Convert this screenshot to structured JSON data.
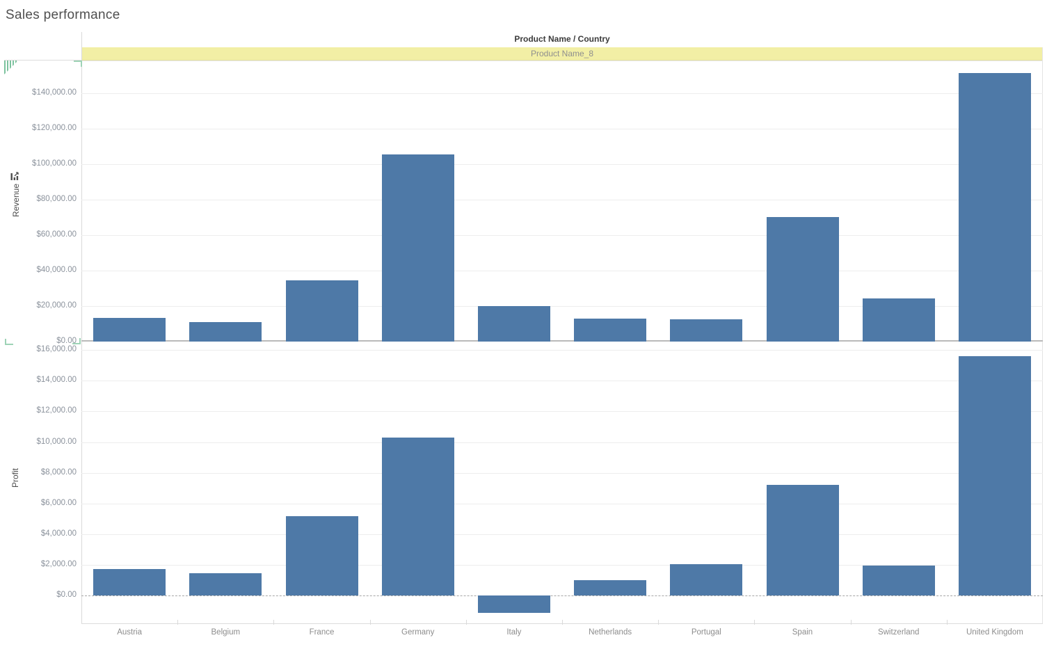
{
  "title": "Sales performance",
  "header": {
    "field_label": "Product Name / Country",
    "band_label": "Product Name_8"
  },
  "icons": {
    "revenue_axis_icon": "sort-bars-icon",
    "top_left_indicator": "hatched-triangle-drop-indicator",
    "corner_marks": "green-corner-bracket"
  },
  "colors": {
    "bar": "#4e79a7",
    "band_bg": "#f2efa5",
    "band_text": "#8f8f8f",
    "tick_text": "#8b929c",
    "green_accent": "#8fcbaf",
    "gridline": "#ededed"
  },
  "chart_data": [
    {
      "type": "bar",
      "pane": "top",
      "ylabel": "Revenue",
      "categories": [
        "Austria",
        "Belgium",
        "France",
        "Germany",
        "Italy",
        "Netherlands",
        "Portugal",
        "Spain",
        "Switzerland",
        "United Kingdom"
      ],
      "values": [
        13500,
        11000,
        34500,
        105300,
        19900,
        12900,
        12400,
        70000,
        24500,
        151500
      ],
      "ylim": [
        0,
        158400
      ],
      "ytick_values": [
        0,
        20000,
        40000,
        60000,
        80000,
        100000,
        120000,
        140000
      ],
      "yticks": [
        "$0.00",
        "$20,000.00",
        "$40,000.00",
        "$60,000.00",
        "$80,000.00",
        "$100,000.00",
        "$120,000.00",
        "$140,000.00"
      ],
      "grid": true,
      "legend": false
    },
    {
      "type": "bar",
      "pane": "bottom",
      "ylabel": "Profit",
      "categories": [
        "Austria",
        "Belgium",
        "France",
        "Germany",
        "Italy",
        "Netherlands",
        "Portugal",
        "Spain",
        "Switzerland",
        "United Kingdom"
      ],
      "values": [
        1730,
        1450,
        5200,
        10300,
        -1100,
        1000,
        2050,
        7200,
        1950,
        15600
      ],
      "ylim": [
        -1790,
        16270
      ],
      "ytick_values": [
        0,
        2000,
        4000,
        6000,
        8000,
        10000,
        12000,
        14000,
        16000
      ],
      "yticks": [
        "$0.00",
        "$2,000.00",
        "$4,000.00",
        "$6,000.00",
        "$8,000.00",
        "$10,000.00",
        "$12,000.00",
        "$14,000.00",
        "$16,000.00"
      ],
      "grid": true,
      "zero_line": "dashed",
      "legend": false
    }
  ]
}
